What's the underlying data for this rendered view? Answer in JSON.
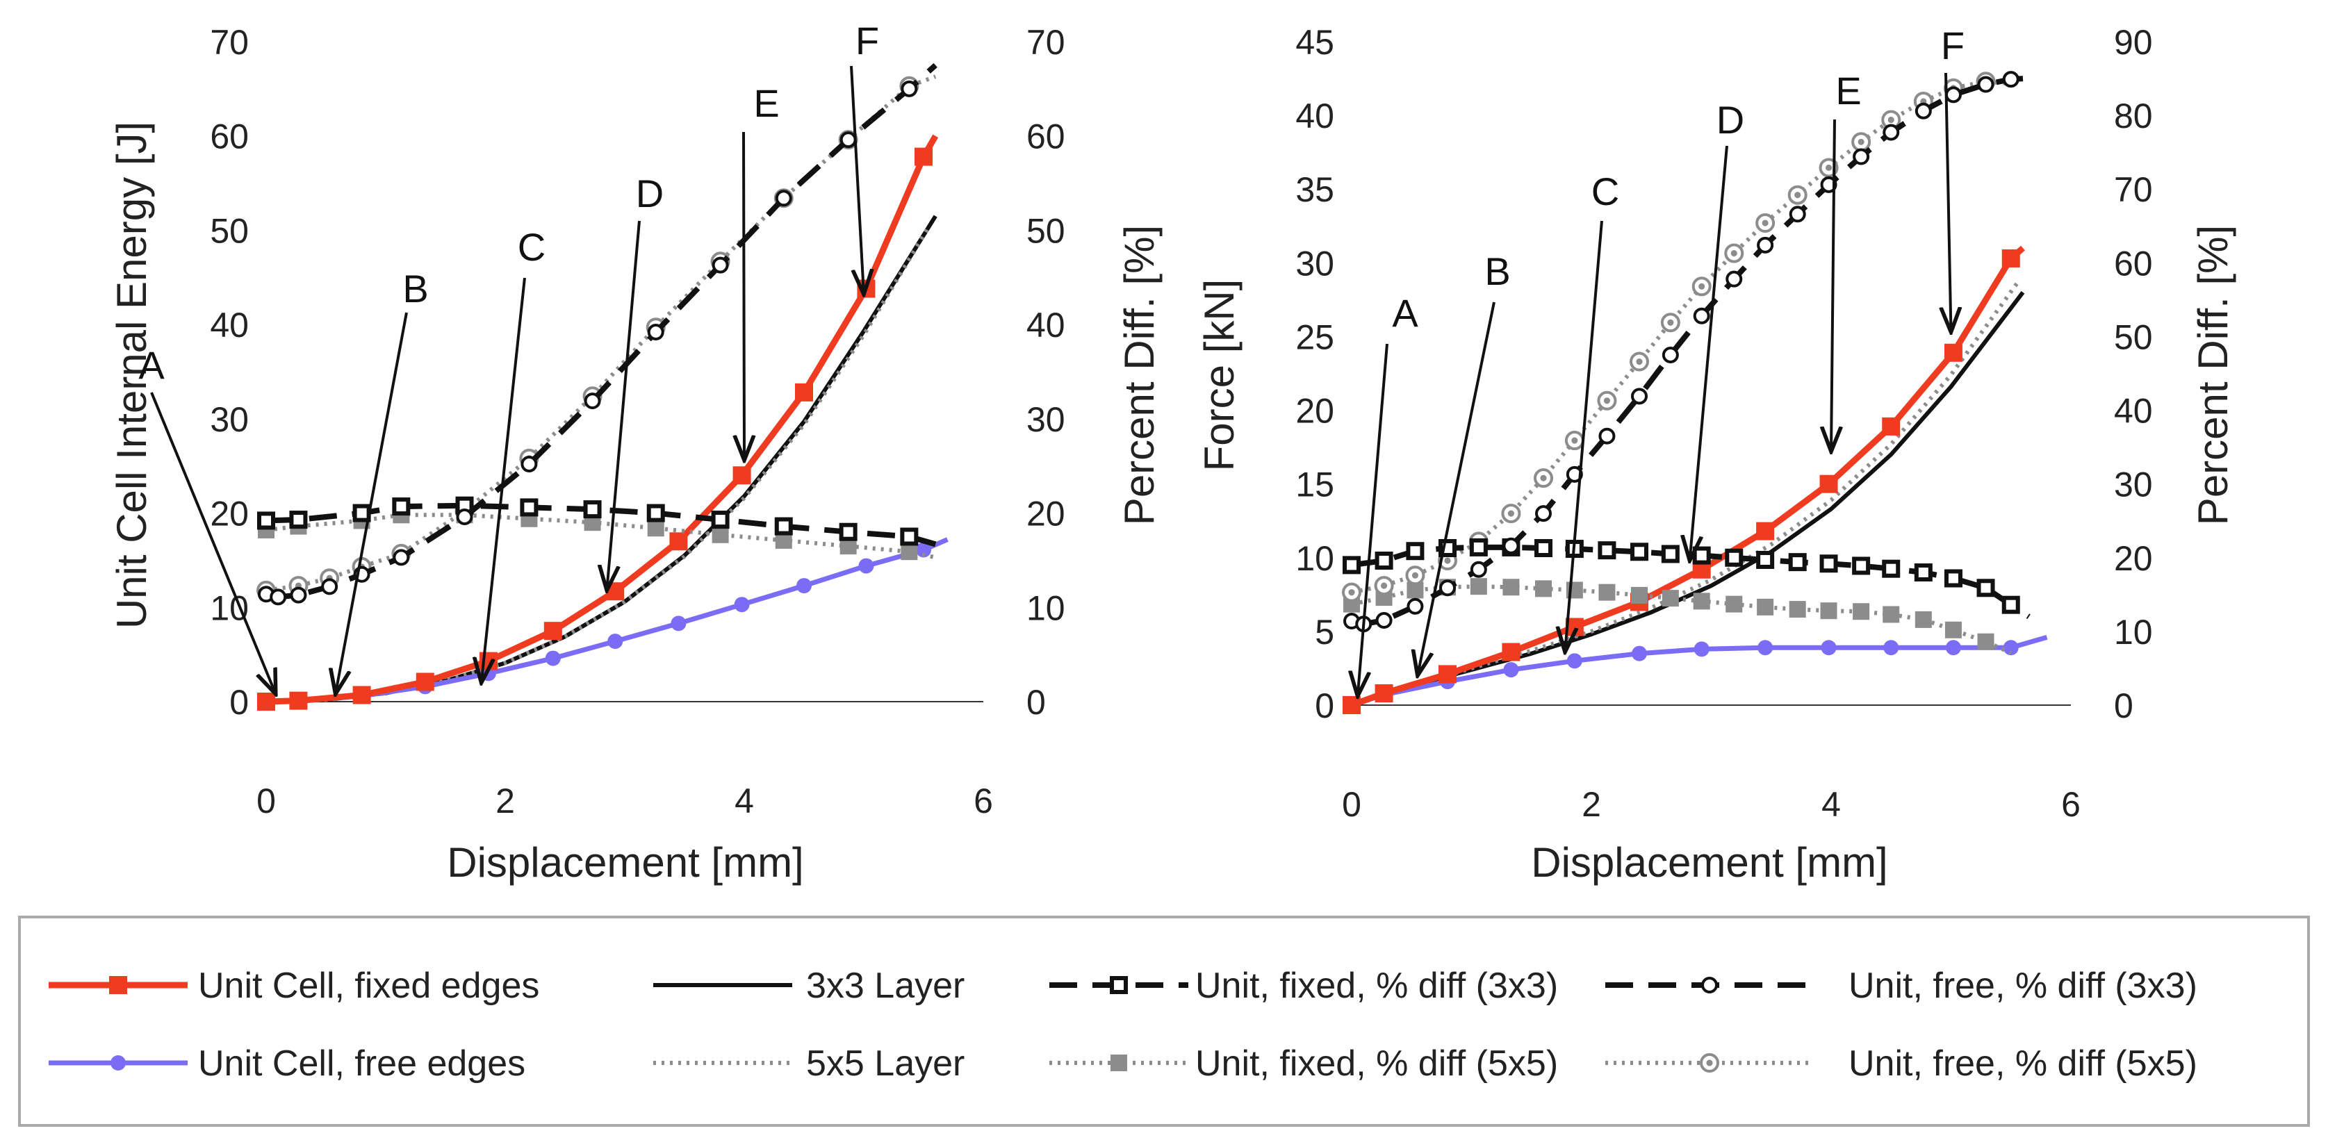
{
  "colors": {
    "fixed_edges": "#ef3b1f",
    "free_edges": "#7b6cf6",
    "layer3x3": "#111111",
    "layer5x5": "#8c8c8c",
    "pd_fixed_3x3": "#111111",
    "pd_fixed_5x5": "#8c8c8c",
    "pd_free_3x3": "#111111",
    "pd_free_5x5": "#8c8c8c",
    "arrow": "#111111",
    "axis": "#333333",
    "legend_border": "#aaaaaa"
  },
  "legend": {
    "placement": "bottom",
    "entries": [
      {
        "key": "fixed",
        "label": "Unit Cell, fixed edges"
      },
      {
        "key": "l3",
        "label": "3x3 Layer"
      },
      {
        "key": "pf3",
        "label": "Unit, fixed, % diff (3x3)"
      },
      {
        "key": "pr3",
        "label": "Unit, free, % diff (3x3)"
      },
      {
        "key": "free",
        "label": "Unit Cell, free edges"
      },
      {
        "key": "l5",
        "label": "5x5 Layer"
      },
      {
        "key": "pf5",
        "label": "Unit, fixed, % diff (5x5)"
      },
      {
        "key": "pr5",
        "label": "Unit, free, % diff (5x5)"
      }
    ]
  },
  "chart_data": [
    {
      "type": "line",
      "xlabel": "Displacement [mm]",
      "ylabel": "Unit Cell Internal Energy [J]",
      "y2label": "Percent Diff. [%]",
      "xlim": [
        0,
        6
      ],
      "ylim": [
        0,
        70
      ],
      "y2lim": [
        0,
        70
      ],
      "xticks": [
        "0",
        "2",
        "4",
        "6"
      ],
      "yticks": [
        "0",
        "10",
        "20",
        "30",
        "40",
        "50",
        "60",
        "70"
      ],
      "y2ticks": [
        "0",
        "10",
        "20",
        "30",
        "40",
        "50",
        "60",
        "70"
      ],
      "grid": false,
      "series": [
        {
          "key": "fixed",
          "axis": "left",
          "x": [
            0,
            0.27,
            0.8,
            1.33,
            1.86,
            2.4,
            2.92,
            3.45,
            3.98,
            4.5,
            5.02,
            5.5,
            5.6
          ],
          "y": [
            0,
            0.1,
            0.7,
            2.1,
            4.3,
            7.5,
            11.7,
            17.0,
            24.0,
            32.8,
            43.8,
            57.8,
            60.0
          ]
        },
        {
          "key": "free",
          "axis": "left",
          "x": [
            0,
            0.27,
            0.8,
            1.33,
            1.86,
            2.4,
            2.92,
            3.45,
            3.98,
            4.5,
            5.02,
            5.5,
            5.7
          ],
          "y": [
            0,
            0.1,
            0.6,
            1.6,
            3.0,
            4.6,
            6.4,
            8.3,
            10.3,
            12.3,
            14.4,
            16.1,
            17.2
          ]
        },
        {
          "key": "l3",
          "axis": "left",
          "x": [
            0,
            0.5,
            1.0,
            1.5,
            2.0,
            2.5,
            3.0,
            3.5,
            4.0,
            4.5,
            5.0,
            5.6
          ],
          "y": [
            0,
            0.2,
            0.9,
            2.2,
            4.1,
            6.9,
            10.6,
            15.5,
            21.8,
            29.7,
            39.3,
            51.5
          ]
        },
        {
          "key": "l5",
          "axis": "left",
          "x": [
            0,
            0.5,
            1.0,
            1.5,
            2.0,
            2.5,
            3.0,
            3.5,
            4.0,
            4.5,
            5.0,
            5.55
          ],
          "y": [
            0,
            0.2,
            0.9,
            2.2,
            4.1,
            6.9,
            10.6,
            15.4,
            21.6,
            29.4,
            38.9,
            50.5
          ]
        },
        {
          "key": "pf3",
          "axis": "right",
          "x": [
            0,
            0.27,
            0.8,
            1.13,
            1.66,
            2.2,
            2.73,
            3.26,
            3.8,
            4.33,
            4.87,
            5.38,
            5.6
          ],
          "y": [
            19.2,
            19.3,
            20.0,
            20.7,
            20.8,
            20.6,
            20.4,
            20.0,
            19.3,
            18.6,
            18.0,
            17.5,
            16.7
          ]
        },
        {
          "key": "pf5",
          "axis": "right",
          "x": [
            0,
            0.27,
            0.8,
            1.13,
            1.66,
            2.2,
            2.73,
            3.26,
            3.8,
            4.33,
            4.87,
            5.38,
            5.6
          ],
          "y": [
            18.2,
            18.6,
            19.2,
            19.8,
            19.8,
            19.4,
            19.0,
            18.4,
            17.7,
            17.1,
            16.5,
            15.9,
            15.3
          ]
        },
        {
          "key": "pr3",
          "axis": "right",
          "x": [
            0,
            0.1,
            0.27,
            0.53,
            0.8,
            1.13,
            1.66,
            2.2,
            2.73,
            3.26,
            3.8,
            4.33,
            4.87,
            5.38,
            5.6
          ],
          "y": [
            11.4,
            11.1,
            11.3,
            12.2,
            13.5,
            15.3,
            19.6,
            25.2,
            31.9,
            39.2,
            46.3,
            53.4,
            59.6,
            65.0,
            67.5
          ]
        },
        {
          "key": "pr5",
          "axis": "right",
          "x": [
            0,
            0.27,
            0.53,
            0.8,
            1.13,
            1.66,
            2.2,
            2.73,
            3.26,
            3.8,
            4.33,
            4.87,
            5.38,
            5.6
          ],
          "y": [
            11.8,
            12.3,
            13.1,
            14.3,
            15.7,
            20.2,
            25.8,
            32.4,
            39.7,
            46.7,
            53.4,
            59.6,
            65.3,
            66.3
          ]
        }
      ],
      "annotations": [
        {
          "label": "A",
          "x": 0.08,
          "y": 0.8
        },
        {
          "label": "B",
          "x": 0.58,
          "y": 0.8
        },
        {
          "label": "C",
          "x": 1.8,
          "y": 2.0
        },
        {
          "label": "D",
          "x": 2.85,
          "y": 11.8
        },
        {
          "label": "E",
          "x": 4.0,
          "y": 25.6
        },
        {
          "label": "F",
          "x": 5.0,
          "y": 43.2
        }
      ]
    },
    {
      "type": "line",
      "xlabel": "Displacement [mm]",
      "ylabel": "Force [kN]",
      "y2label": "Percent Diff. [%]",
      "xlim": [
        0,
        6
      ],
      "ylim": [
        0,
        45
      ],
      "y2lim": [
        0,
        90
      ],
      "xticks": [
        "0",
        "2",
        "4",
        "6"
      ],
      "yticks": [
        "0",
        "5",
        "10",
        "15",
        "20",
        "25",
        "30",
        "35",
        "40",
        "45"
      ],
      "y2ticks": [
        "0",
        "10",
        "20",
        "30",
        "40",
        "50",
        "60",
        "70",
        "80",
        "90"
      ],
      "grid": false,
      "series": [
        {
          "key": "fixed",
          "axis": "left",
          "x": [
            0,
            0.27,
            0.8,
            1.33,
            1.86,
            2.4,
            2.92,
            3.45,
            3.98,
            4.5,
            5.02,
            5.5,
            5.6
          ],
          "y": [
            0,
            0.8,
            2.1,
            3.6,
            5.3,
            7.0,
            9.2,
            11.8,
            15.0,
            18.9,
            23.9,
            30.3,
            31.0
          ]
        },
        {
          "key": "free",
          "axis": "left",
          "x": [
            0,
            0.27,
            0.8,
            1.33,
            1.86,
            2.4,
            2.92,
            3.45,
            3.98,
            4.5,
            5.02,
            5.5,
            5.8
          ],
          "y": [
            0,
            0.7,
            1.6,
            2.4,
            3.0,
            3.5,
            3.8,
            3.9,
            3.9,
            3.9,
            3.9,
            3.9,
            4.6
          ]
        },
        {
          "key": "l3",
          "axis": "left",
          "x": [
            0,
            0.5,
            1.0,
            1.5,
            2.0,
            2.5,
            3.0,
            3.5,
            4.0,
            4.5,
            5.0,
            5.6
          ],
          "y": [
            0,
            1.3,
            2.4,
            3.5,
            4.8,
            6.3,
            8.1,
            10.4,
            13.3,
            17.0,
            21.6,
            28.0
          ]
        },
        {
          "key": "l5",
          "axis": "left",
          "x": [
            0,
            0.5,
            1.0,
            1.5,
            2.0,
            2.5,
            3.0,
            3.5,
            4.0,
            4.5,
            5.0,
            5.55
          ],
          "y": [
            0,
            1.3,
            2.5,
            3.7,
            5.0,
            6.6,
            8.5,
            10.9,
            13.9,
            17.7,
            22.4,
            28.6
          ]
        },
        {
          "key": "pf3",
          "axis": "right",
          "x": [
            0,
            0.27,
            0.53,
            0.8,
            1.06,
            1.33,
            1.6,
            1.86,
            2.13,
            2.4,
            2.66,
            2.92,
            3.19,
            3.45,
            3.72,
            3.98,
            4.25,
            4.5,
            4.77,
            5.02,
            5.29,
            5.5,
            5.65
          ],
          "y": [
            19.0,
            19.6,
            20.9,
            21.3,
            21.4,
            21.4,
            21.3,
            21.2,
            21.0,
            20.8,
            20.5,
            20.3,
            20.0,
            19.7,
            19.4,
            19.2,
            18.9,
            18.5,
            18.0,
            17.2,
            15.9,
            13.6,
            12.0
          ]
        },
        {
          "key": "pf5",
          "axis": "right",
          "x": [
            0,
            0.27,
            0.53,
            0.8,
            1.06,
            1.33,
            1.6,
            1.86,
            2.13,
            2.4,
            2.66,
            2.92,
            3.19,
            3.45,
            3.72,
            3.98,
            4.25,
            4.5,
            4.77,
            5.02,
            5.29,
            5.5
          ],
          "y": [
            13.7,
            14.6,
            15.6,
            16.0,
            16.1,
            16.0,
            15.8,
            15.6,
            15.3,
            14.9,
            14.5,
            14.1,
            13.7,
            13.3,
            13.0,
            12.8,
            12.7,
            12.3,
            11.6,
            10.2,
            8.6,
            7.1
          ]
        },
        {
          "key": "pr3",
          "axis": "right",
          "x": [
            0,
            0.1,
            0.27,
            0.53,
            0.8,
            1.06,
            1.33,
            1.6,
            1.86,
            2.13,
            2.4,
            2.66,
            2.92,
            3.19,
            3.45,
            3.72,
            3.98,
            4.25,
            4.5,
            4.77,
            5.02,
            5.29,
            5.5,
            5.6
          ],
          "y": [
            11.4,
            11.0,
            11.5,
            13.4,
            15.9,
            18.4,
            21.6,
            26.0,
            31.3,
            36.5,
            41.9,
            47.5,
            52.8,
            57.8,
            62.4,
            66.6,
            70.6,
            74.4,
            77.7,
            80.6,
            82.8,
            84.2,
            84.9,
            85.0
          ]
        },
        {
          "key": "pr5",
          "axis": "right",
          "x": [
            0,
            0.27,
            0.53,
            0.8,
            1.06,
            1.33,
            1.6,
            1.86,
            2.13,
            2.4,
            2.66,
            2.92,
            3.19,
            3.45,
            3.72,
            3.98,
            4.25,
            4.5,
            4.77,
            5.02,
            5.29,
            5.5
          ],
          "y": [
            15.3,
            16.2,
            17.6,
            19.6,
            22.2,
            26.0,
            30.8,
            35.9,
            41.3,
            46.6,
            51.9,
            56.8,
            61.3,
            65.4,
            69.2,
            72.9,
            76.4,
            79.4,
            81.9,
            83.7,
            84.6,
            84.3
          ]
        }
      ],
      "annotations": [
        {
          "label": "A",
          "x": 0.05,
          "y": 0.6
        },
        {
          "label": "B",
          "x": 0.55,
          "y": 2.0
        },
        {
          "label": "C",
          "x": 1.78,
          "y": 3.6
        },
        {
          "label": "D",
          "x": 2.82,
          "y": 9.8
        },
        {
          "label": "E",
          "x": 4.0,
          "y": 17.2
        },
        {
          "label": "F",
          "x": 5.0,
          "y": 25.3
        }
      ]
    }
  ]
}
